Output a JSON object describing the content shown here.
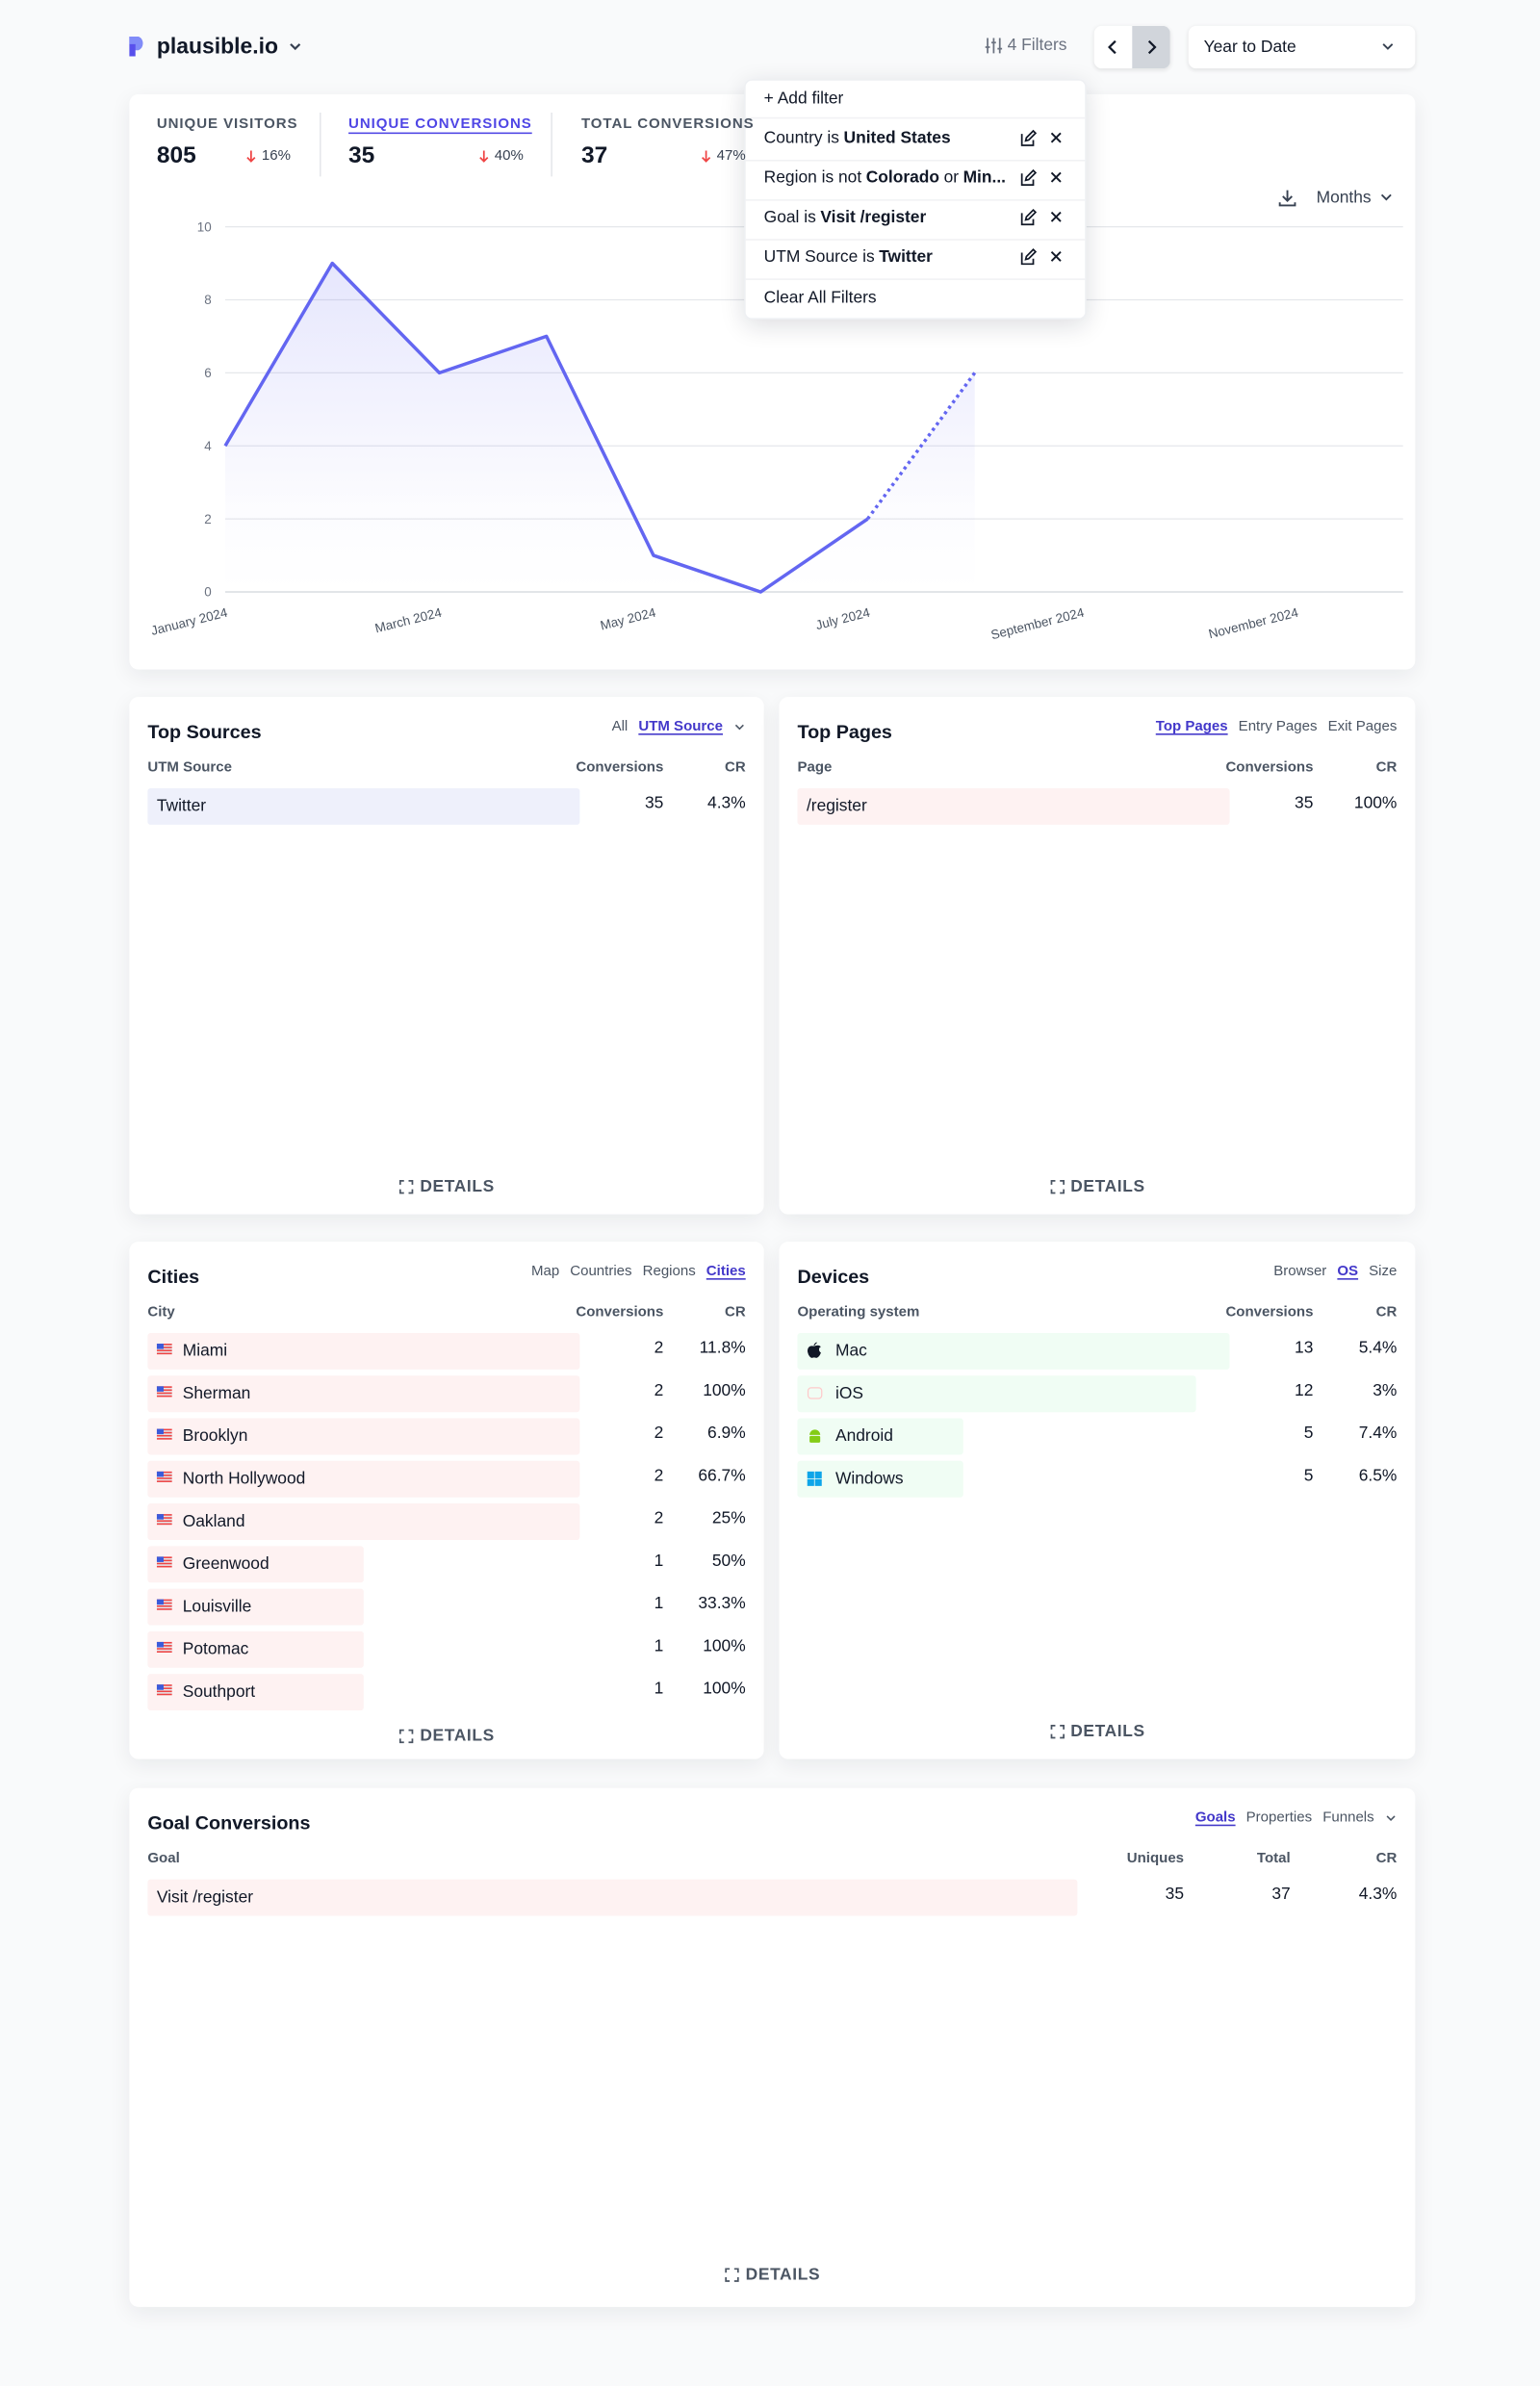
{
  "header": {
    "site": "plausible.io",
    "filters_button": "4 Filters",
    "period": "Year to Date"
  },
  "top_stats": [
    {
      "label": "UNIQUE VISITORS",
      "value": 805,
      "change": "16%"
    },
    {
      "label": "UNIQUE CONVERSIONS",
      "value": 35,
      "change": "40%"
    },
    {
      "label": "TOTAL CONVERSIONS",
      "value": 37,
      "change": "47%"
    }
  ],
  "filter_menu": {
    "add": "+ Add filter",
    "filters": [
      {
        "parts": [
          {
            "text": "Country is"
          },
          {
            "text": "United States",
            "strong": true
          }
        ]
      },
      {
        "parts": [
          {
            "text": "Region is not"
          },
          {
            "text": "Colorado",
            "strong": true
          },
          {
            "text": "or"
          },
          {
            "text": "Min...",
            "strong": true
          }
        ]
      },
      {
        "parts": [
          {
            "text": "Goal is"
          },
          {
            "text": "Visit /register",
            "strong": true
          }
        ]
      },
      {
        "parts": [
          {
            "text": "UTM Source is"
          },
          {
            "text": "Twitter",
            "strong": true
          }
        ]
      }
    ],
    "clear": "Clear All Filters"
  },
  "graph": {
    "type": "line",
    "interval": "Months",
    "categories": [
      "January 2024",
      null,
      "March 2024",
      null,
      "May 2024",
      null,
      "July 2024",
      null,
      "September 2024",
      null,
      "November 2024",
      null
    ],
    "values": [
      4,
      9,
      6,
      7,
      1,
      0,
      2,
      6,
      null,
      null,
      null,
      null
    ],
    "ylim": [
      0,
      10
    ],
    "yticks": [
      0,
      2,
      4,
      6,
      8,
      10
    ],
    "color": "#6366f1",
    "grid": true
  },
  "top_sources": {
    "title": "Top Sources",
    "tabs": [
      "All",
      "UTM Source"
    ],
    "active_tab": 1,
    "columns": [
      "UTM Source",
      "Conversions",
      "CR"
    ],
    "rows": [
      [
        "Twitter",
        35,
        "4.3%"
      ]
    ],
    "details": "DETAILS"
  },
  "top_pages": {
    "title": "Top Pages",
    "tabs": [
      "Top Pages",
      "Entry Pages",
      "Exit Pages"
    ],
    "active_tab": 0,
    "columns": [
      "Page",
      "Conversions",
      "CR"
    ],
    "rows": [
      [
        "/register",
        35,
        "100%"
      ]
    ],
    "details": "DETAILS"
  },
  "cities": {
    "title": "Cities",
    "tabs": [
      "Map",
      "Countries",
      "Regions",
      "Cities"
    ],
    "active_tab": 3,
    "columns": [
      "City",
      "Conversions",
      "CR"
    ],
    "rows": [
      [
        "Miami",
        2,
        "11.8%"
      ],
      [
        "Sherman",
        2,
        "100%"
      ],
      [
        "Brooklyn",
        2,
        "6.9%"
      ],
      [
        "North Hollywood",
        2,
        "66.7%"
      ],
      [
        "Oakland",
        2,
        "25%"
      ],
      [
        "Greenwood",
        1,
        "50%"
      ],
      [
        "Louisville",
        1,
        "33.3%"
      ],
      [
        "Potomac",
        1,
        "100%"
      ],
      [
        "Southport",
        1,
        "100%"
      ]
    ],
    "details": "DETAILS"
  },
  "devices": {
    "title": "Devices",
    "tabs": [
      "Browser",
      "OS",
      "Size"
    ],
    "active_tab": 1,
    "columns": [
      "Operating system",
      "Conversions",
      "CR"
    ],
    "rows": [
      [
        "Mac",
        13,
        "5.4%"
      ],
      [
        "iOS",
        12,
        "3%"
      ],
      [
        "Android",
        5,
        "7.4%"
      ],
      [
        "Windows",
        5,
        "6.5%"
      ]
    ],
    "details": "DETAILS"
  },
  "goal_conversions": {
    "title": "Goal Conversions",
    "tabs": [
      "Goals",
      "Properties",
      "Funnels"
    ],
    "active_tab": 0,
    "columns": [
      "Goal",
      "Uniques",
      "Total",
      "CR"
    ],
    "rows": [
      [
        "Visit /register",
        35,
        37,
        "4.3%"
      ]
    ],
    "details": "DETAILS"
  }
}
